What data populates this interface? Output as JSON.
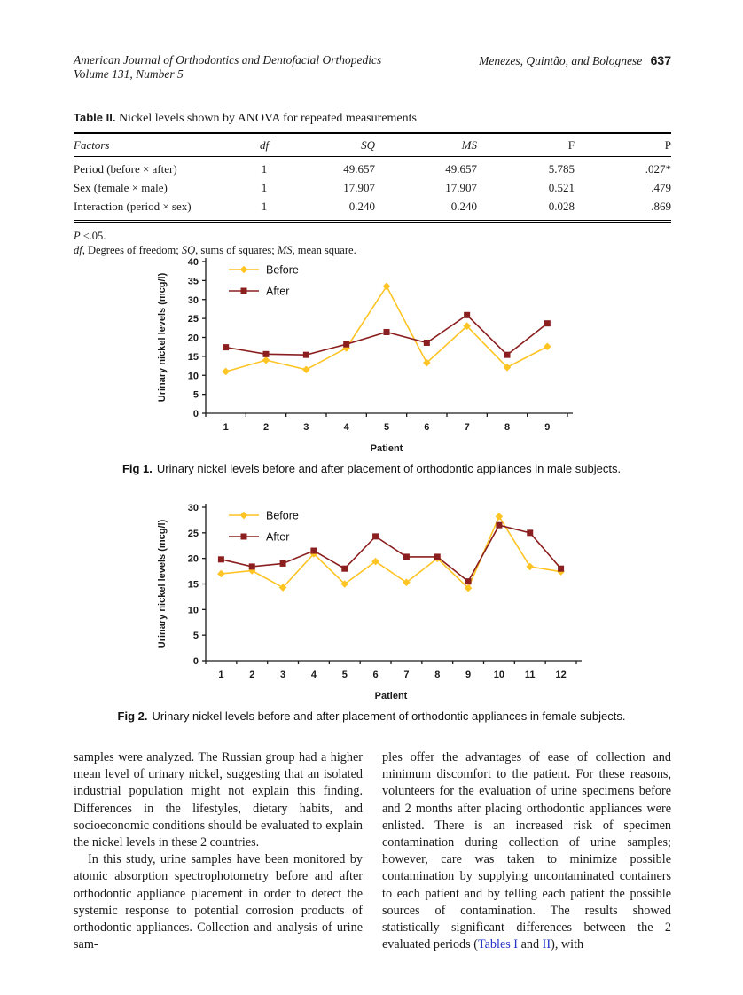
{
  "header": {
    "journal_line1": "American Journal of Orthodontics and Dentofacial Orthopedics",
    "journal_line2": "Volume 131, Number 5",
    "authors": "Menezes, Quintão, and Bolognese",
    "page_number": "637"
  },
  "table": {
    "label": "Table II.",
    "title": "Nickel levels shown by ANOVA for repeated measurements",
    "columns": [
      "Factors",
      "df",
      "SQ",
      "MS",
      "F",
      "P"
    ],
    "rows": [
      {
        "factor": "Period (before × after)",
        "df": "1",
        "sq": "49.657",
        "ms": "49.657",
        "f": "5.785",
        "p": ".027*"
      },
      {
        "factor": "Sex (female × male)",
        "df": "1",
        "sq": "17.907",
        "ms": "17.907",
        "f": "0.521",
        "p": ".479"
      },
      {
        "factor": "Interaction (period × sex)",
        "df": "1",
        "sq": "0.240",
        "ms": "0.240",
        "f": "0.028",
        "p": ".869"
      }
    ],
    "footnote1_segments": [
      {
        "t": "P",
        "style": "italic"
      },
      {
        "t": " ≤.05."
      }
    ],
    "footnote2_segments": [
      {
        "t": "df",
        "style": "italic"
      },
      {
        "t": ", Degrees of freedom; "
      },
      {
        "t": "SQ",
        "style": "italic"
      },
      {
        "t": ", sums of squares; "
      },
      {
        "t": "MS",
        "style": "italic"
      },
      {
        "t": ", mean square."
      }
    ]
  },
  "figures": [
    {
      "label": "Fig 1.",
      "caption": "Urinary nickel levels before and after placement of orthodontic appliances in male subjects."
    },
    {
      "label": "Fig 2.",
      "caption": "Urinary nickel levels before and after placement of orthodontic appliances in female subjects."
    }
  ],
  "chart_data": [
    {
      "type": "line",
      "categories": [
        "1",
        "2",
        "3",
        "4",
        "5",
        "6",
        "7",
        "8",
        "9"
      ],
      "series": [
        {
          "name": "Before",
          "marker": "diamond",
          "color": "#FEC424",
          "values": [
            11,
            14,
            11.5,
            17.2,
            33.5,
            13.3,
            23,
            12.1,
            17.6
          ]
        },
        {
          "name": "After",
          "marker": "square",
          "color": "#8B1F1F",
          "values": [
            17.4,
            15.6,
            15.4,
            18.2,
            21.4,
            18.6,
            25.9,
            15.4,
            23.7
          ]
        }
      ],
      "xlabel": "Patient",
      "ylabel": "Urinary nickel levels (mcg/l)",
      "ylim": [
        0,
        40
      ],
      "ystep": 5,
      "grid": false,
      "legend_position": "top-left"
    },
    {
      "type": "line",
      "categories": [
        "1",
        "2",
        "3",
        "4",
        "5",
        "6",
        "7",
        "8",
        "9",
        "10",
        "11",
        "12"
      ],
      "series": [
        {
          "name": "Before",
          "marker": "diamond",
          "color": "#FEC424",
          "values": [
            17,
            17.6,
            14.3,
            20.9,
            15,
            19.4,
            15.3,
            20,
            14.2,
            28.2,
            18.4,
            17.4
          ]
        },
        {
          "name": "After",
          "marker": "square",
          "color": "#8B1F1F",
          "values": [
            19.8,
            18.4,
            19,
            21.5,
            18,
            24.3,
            20.3,
            20.3,
            15.5,
            26.5,
            25,
            18
          ]
        }
      ],
      "xlabel": "Patient",
      "ylabel": "Urinary nickel levels (mcg/l)",
      "ylim": [
        0,
        30
      ],
      "ystep": 5,
      "grid": false,
      "legend_position": "top-left"
    }
  ],
  "body": {
    "left_paragraphs": [
      "samples were analyzed. The Russian group had a higher mean level of urinary nickel, suggesting that an isolated industrial population might not explain this finding. Differences in the lifestyles, dietary habits, and socioeconomic conditions should be evaluated to explain the nickel levels in these 2 countries.",
      "In this study, urine samples have been monitored by atomic absorption spectrophotometry before and after orthodontic appliance placement in order to detect the systemic response to potential corrosion products of orthodontic appliances. Collection and analysis of urine sam-"
    ],
    "right_segments": [
      {
        "t": "ples offer the advantages of ease of collection and minimum discomfort to the patient. For these reasons, volunteers for the evaluation of urine specimens before and 2 months after placing orthodontic appliances were enlisted. There is an increased risk of specimen contamination during collection of urine samples; however, care was taken to minimize possible contamination by supplying uncontaminated containers to each patient and by telling each patient the possible sources of contamination. The results showed statistically significant differences between the 2 evaluated periods ("
      },
      {
        "t": "Tables I",
        "style": "link"
      },
      {
        "t": " and "
      },
      {
        "t": "II",
        "style": "link"
      },
      {
        "t": "), with"
      }
    ]
  }
}
